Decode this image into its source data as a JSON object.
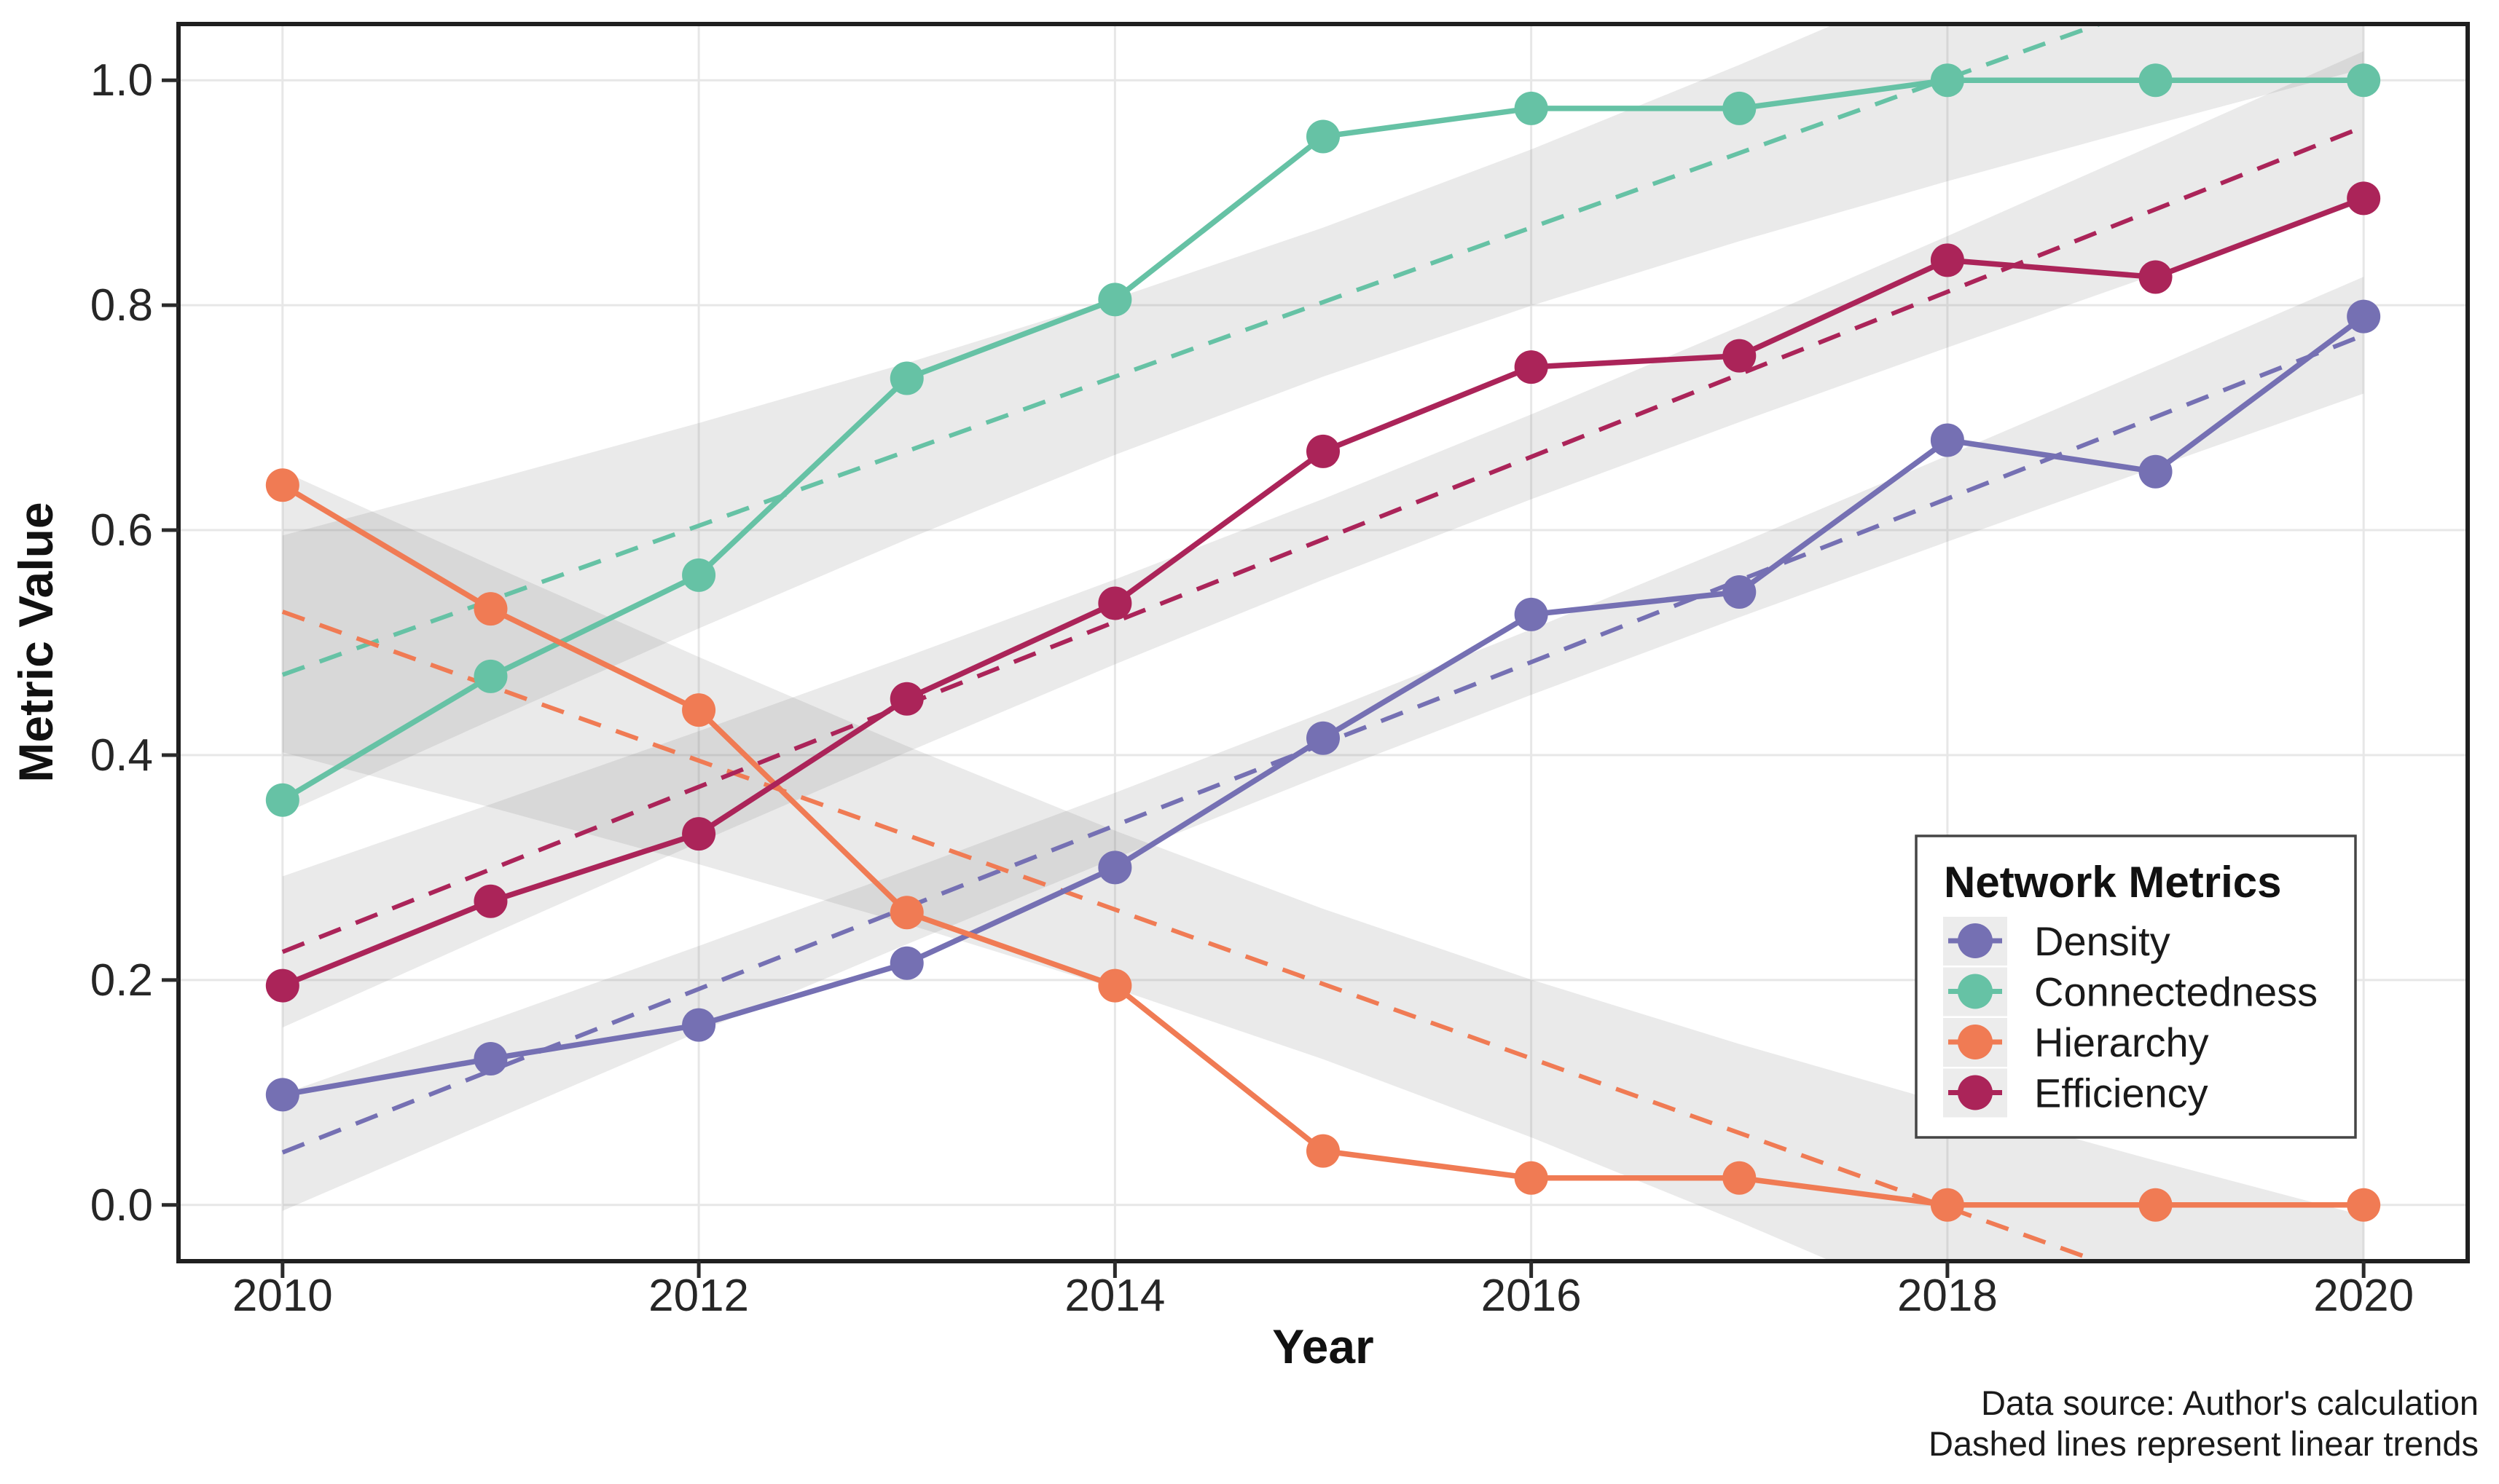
{
  "chart_data": {
    "type": "line",
    "title": "",
    "xlabel": "Year",
    "ylabel": "Metric Value",
    "x": [
      2010,
      2011,
      2012,
      2013,
      2014,
      2015,
      2016,
      2017,
      2018,
      2019,
      2020
    ],
    "x_ticks": [
      2010,
      2012,
      2014,
      2016,
      2018,
      2020
    ],
    "x_tick_labels": [
      "2010",
      "2012",
      "2014",
      "2016",
      "2018",
      "2020"
    ],
    "y_ticks": [
      0.0,
      0.2,
      0.4,
      0.6,
      0.8,
      1.0
    ],
    "y_tick_labels": [
      "0.0",
      "0.2",
      "0.4",
      "0.6",
      "0.8",
      "1.0"
    ],
    "xlim": [
      2009.5,
      2020.5
    ],
    "ylim": [
      -0.05,
      1.05
    ],
    "grid": "major-only",
    "legend_position": "inside-right",
    "series": [
      {
        "name": "Density",
        "color": "#7570B3",
        "values": [
          0.098,
          0.13,
          0.16,
          0.215,
          0.3,
          0.415,
          0.525,
          0.545,
          0.68,
          0.652,
          0.79
        ]
      },
      {
        "name": "Connectedness",
        "color": "#66C2A5",
        "values": [
          0.36,
          0.47,
          0.56,
          0.735,
          0.805,
          0.95,
          0.975,
          0.975,
          1.0,
          1.0,
          1.0
        ]
      },
      {
        "name": "Hierarchy",
        "color": "#F07B54",
        "values": [
          0.64,
          0.53,
          0.44,
          0.26,
          0.195,
          0.048,
          0.024,
          0.024,
          0.0,
          0.0,
          0.0
        ]
      },
      {
        "name": "Efficiency",
        "color": "#AB2459",
        "values": [
          0.195,
          0.27,
          0.33,
          0.45,
          0.535,
          0.67,
          0.745,
          0.755,
          0.84,
          0.825,
          0.895
        ]
      }
    ],
    "trend_lines": {
      "style": "dashed",
      "method": "linear",
      "confidence_band": true,
      "band_color": "rgba(125,125,125,0.16)"
    }
  },
  "legend": {
    "title": "Network Metrics"
  },
  "caption": {
    "line1": "Data source: Author's calculation",
    "line2": "Dashed lines represent linear trends"
  },
  "colors": {
    "panel_border": "#1f1f1f",
    "gridline": "#e7e7e7",
    "tick": "#2b2b2b",
    "legend_border": "#454545",
    "legend_key_bg": "#ececec"
  }
}
